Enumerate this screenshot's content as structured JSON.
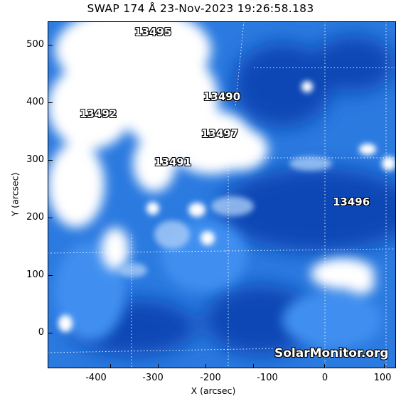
{
  "title": "SWAP 174 Å 23-Nov-2023 19:26:58.183",
  "x_axis": {
    "label": "X (arcsec)",
    "ticks": [
      "-400",
      "-300",
      "-200",
      "-100",
      "0",
      "100"
    ]
  },
  "y_axis": {
    "label": "Y (arcsec)",
    "ticks": [
      "500",
      "400",
      "300",
      "200",
      "100",
      "0"
    ]
  },
  "regions": [
    "13495",
    "13490",
    "13492",
    "13497",
    "13491",
    "13496"
  ],
  "watermark": "SolarMonitor.org",
  "colors": {
    "background_blue": "#1f6fd9",
    "dark_blue": "#0e47b8",
    "bright": "#ffffff",
    "grid": "#ffffff"
  }
}
